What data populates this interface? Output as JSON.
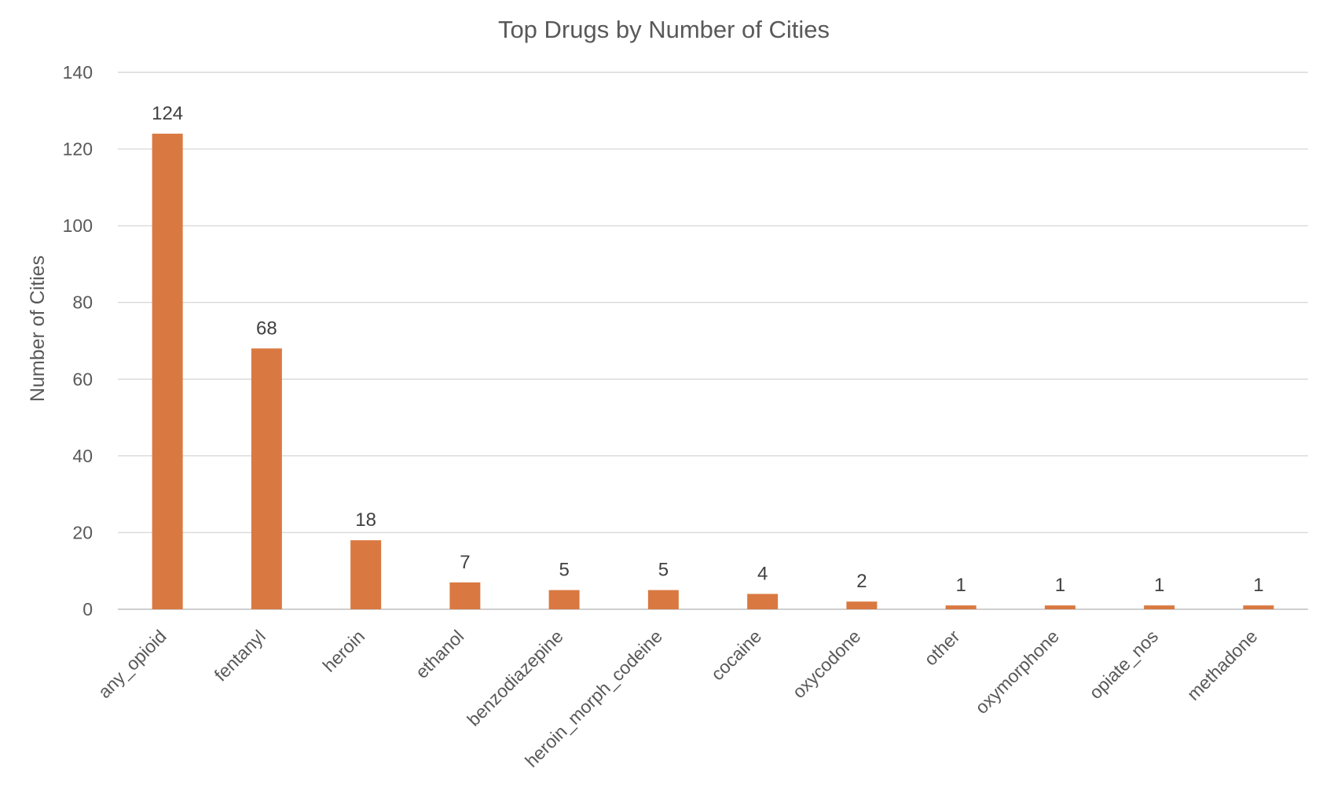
{
  "chart_data": {
    "type": "bar",
    "title": "Top Drugs by Number of Cities",
    "ylabel": "Number of Cities",
    "xlabel": "",
    "categories": [
      "any_opioid",
      "fentanyl",
      "heroin",
      "ethanol",
      "benzodiazepine",
      "heroin_morph_codeine",
      "cocaine",
      "oxycodone",
      "other",
      "oxymorphone",
      "opiate_nos",
      "methadone"
    ],
    "values": [
      124,
      68,
      18,
      7,
      5,
      5,
      4,
      2,
      1,
      1,
      1,
      1
    ],
    "ylim": [
      0,
      140
    ],
    "yticks": [
      0,
      20,
      40,
      60,
      80,
      100,
      120,
      140
    ],
    "grid": true,
    "legend": false,
    "bar_color": "#d97941"
  }
}
